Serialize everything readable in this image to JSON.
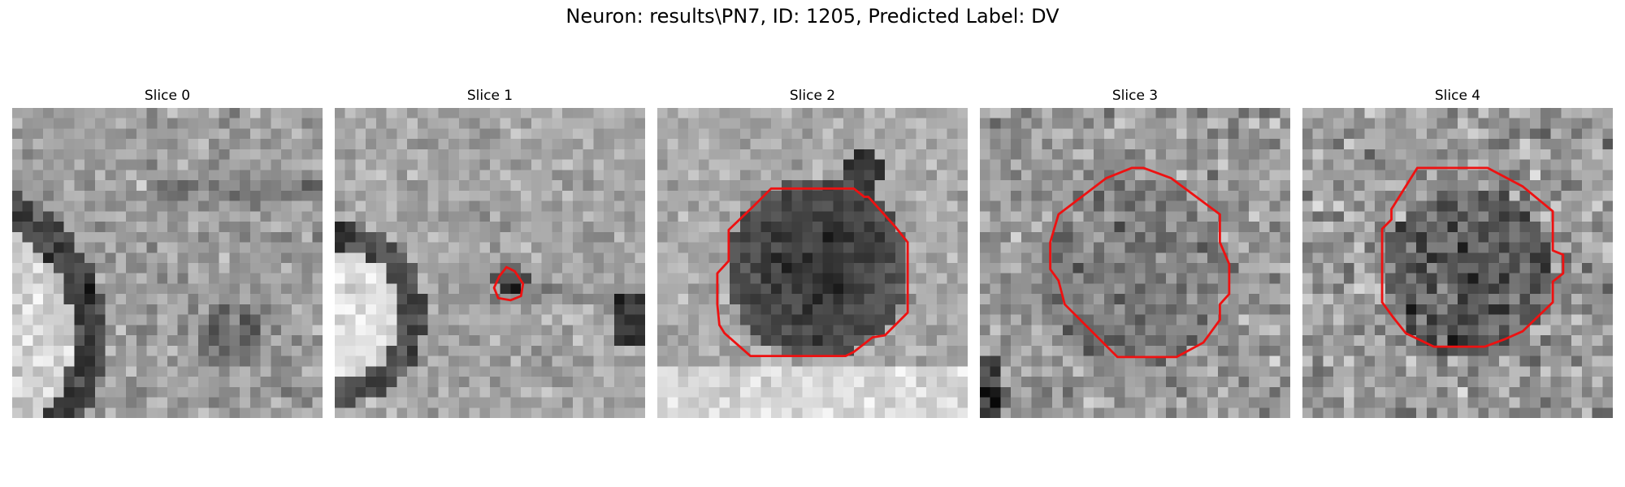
{
  "figure": {
    "title": "Neuron: results\\PN7, ID: 1205, Predicted Label: DV"
  },
  "panels": [
    {
      "title": "Slice 0",
      "contour": "none"
    },
    {
      "title": "Slice 1",
      "contour": "small"
    },
    {
      "title": "Slice 2",
      "contour": "large-dark"
    },
    {
      "title": "Slice 3",
      "contour": "octagon"
    },
    {
      "title": "Slice 4",
      "contour": "octagon-dark"
    }
  ],
  "colors": {
    "contour": "#ee1111",
    "background": "#ffffff"
  }
}
